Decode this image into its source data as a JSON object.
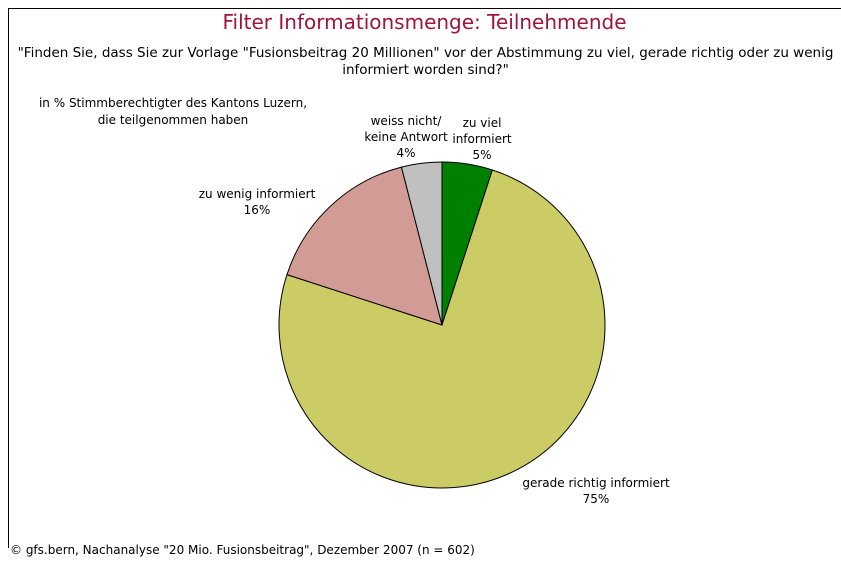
{
  "chart_data": {
    "type": "pie",
    "title": "Filter Informationsmenge: Teilnehmende",
    "subtitle": "\"Finden Sie, dass Sie zur Vorlage \"Fusionsbeitrag 20 Millionen\" vor der Abstimmung zu viel, gerade richtig oder zu wenig informiert worden sind?\"",
    "note": "in % Stimmberechtigter des Kantons Luzern,\ndie teilgenommen haben",
    "source": "© gfs.bern, Nachanalyse \"20 Mio. Fusionsbeitrag\", Dezember 2007 (n = 602)",
    "categories": [
      "zu viel\ninformiert",
      "gerade richtig informiert",
      "zu wenig informiert",
      "weiss nicht/\nkeine Antwort"
    ],
    "values": [
      5,
      75,
      16,
      4
    ],
    "value_labels": [
      "5%",
      "75%",
      "16%",
      "4%"
    ],
    "colors": [
      "#008000",
      "#cccc66",
      "#d39b96",
      "#c0c0c0"
    ]
  }
}
